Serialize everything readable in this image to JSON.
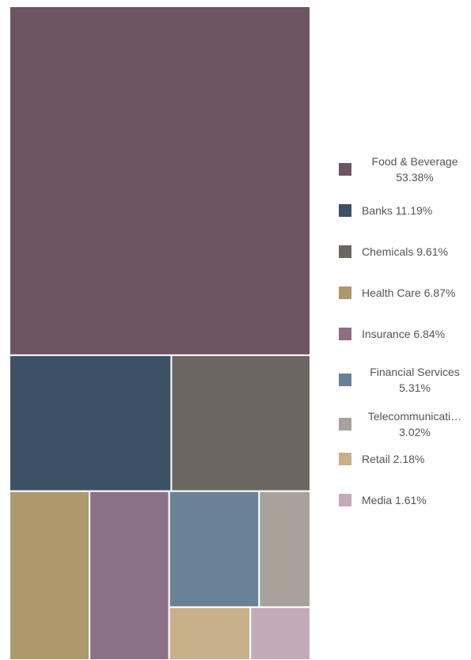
{
  "chart_data": {
    "type": "treemap",
    "title": "",
    "series": [
      {
        "name": "Food & Beverage",
        "value": 53.38,
        "label": "Food & Beverage 53.38%",
        "color": "#6e5361"
      },
      {
        "name": "Banks",
        "value": 11.19,
        "label": "Banks 11.19%",
        "color": "#3d5166"
      },
      {
        "name": "Chemicals",
        "value": 9.61,
        "label": "Chemicals 9.61%",
        "color": "#6b6760"
      },
      {
        "name": "Health Care",
        "value": 6.87,
        "label": "Health Care 6.87%",
        "color": "#ad9a6c"
      },
      {
        "name": "Insurance",
        "value": 6.84,
        "label": "Insurance 6.84%",
        "color": "#8c7087"
      },
      {
        "name": "Financial Services",
        "value": 5.31,
        "label": "Financial Services 5.31%",
        "color": "#6a8296"
      },
      {
        "name": "Telecommunications",
        "value": 3.02,
        "label": "Telecommunicati… 3.02%",
        "color": "#a8a19c"
      },
      {
        "name": "Retail",
        "value": 2.18,
        "label": "Retail 2.18%",
        "color": "#c8b08a"
      },
      {
        "name": "Media",
        "value": 1.61,
        "label": "Media 1.61%",
        "color": "#c3aab9"
      }
    ],
    "legend_position": "right"
  }
}
